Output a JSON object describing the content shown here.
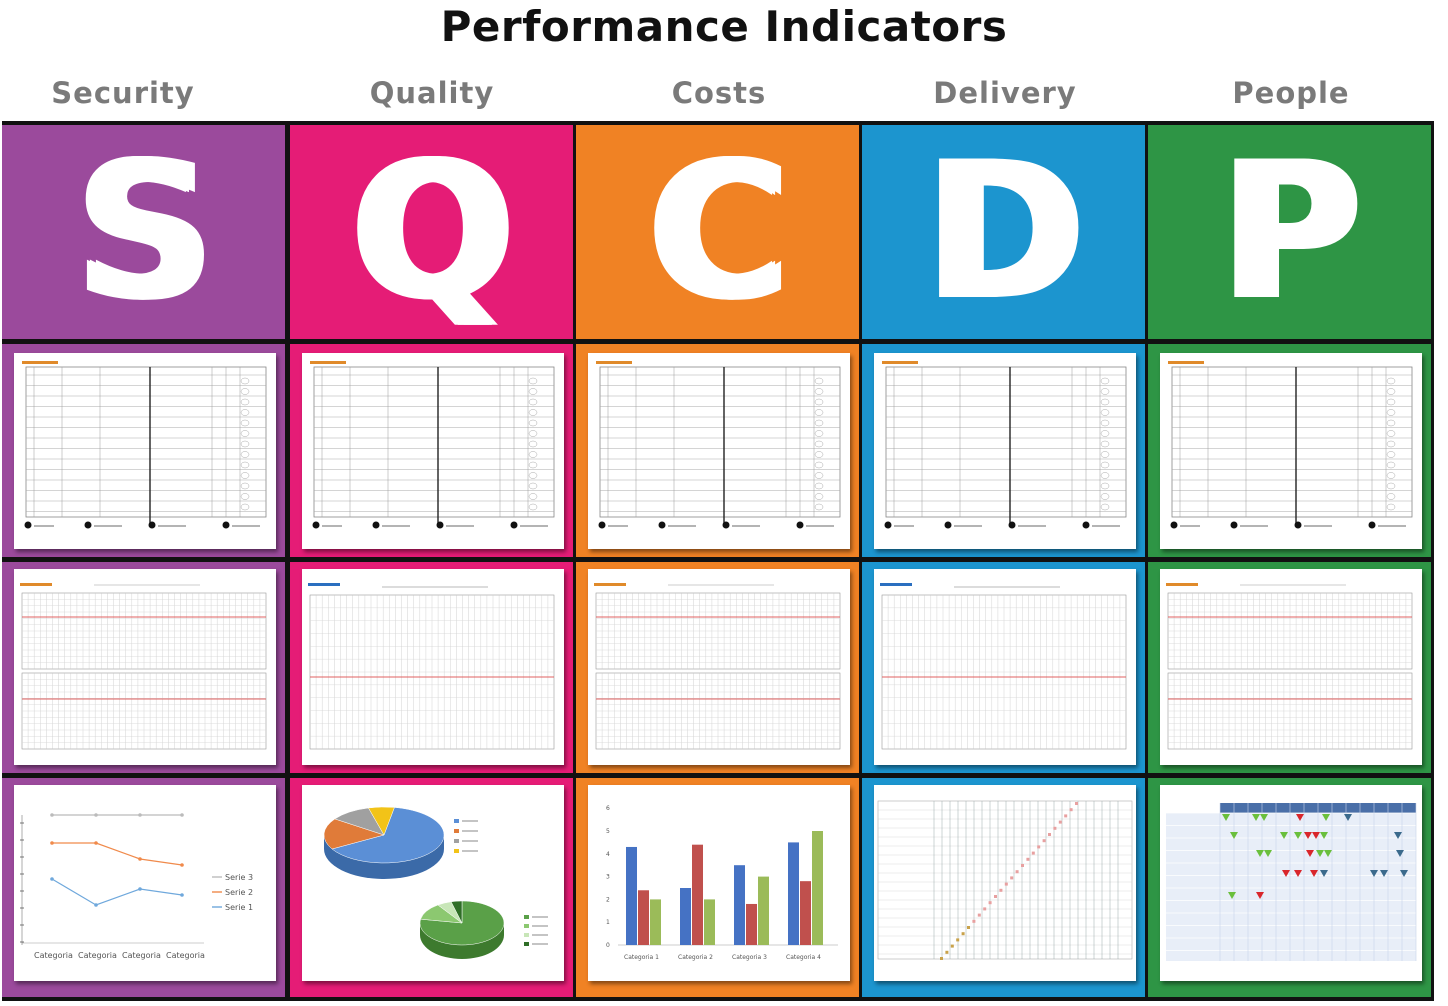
{
  "title": "Performance Indicators",
  "columns": [
    {
      "heading": "Security",
      "letter": "S",
      "color": "#9b4a9c"
    },
    {
      "heading": "Quality",
      "letter": "Q",
      "color": "#e51c76"
    },
    {
      "heading": "Costs",
      "letter": "C",
      "color": "#f08224"
    },
    {
      "heading": "Delivery",
      "letter": "D",
      "color": "#1c95cf"
    },
    {
      "heading": "People",
      "letter": "P",
      "color": "#2e9545"
    }
  ],
  "line_chart": {
    "categories": [
      "Categoria",
      "Categoria",
      "Categoria",
      "Categoria"
    ],
    "legend": [
      "Serie 3",
      "Serie 2",
      "Serie 1"
    ]
  },
  "bar_chart": {
    "categories": [
      "Categoria 1",
      "Categoria 2",
      "Categoria 3",
      "Categoria 4"
    ],
    "y_ticks": [
      "0",
      "1",
      "2",
      "3",
      "4",
      "5",
      "6"
    ]
  }
}
